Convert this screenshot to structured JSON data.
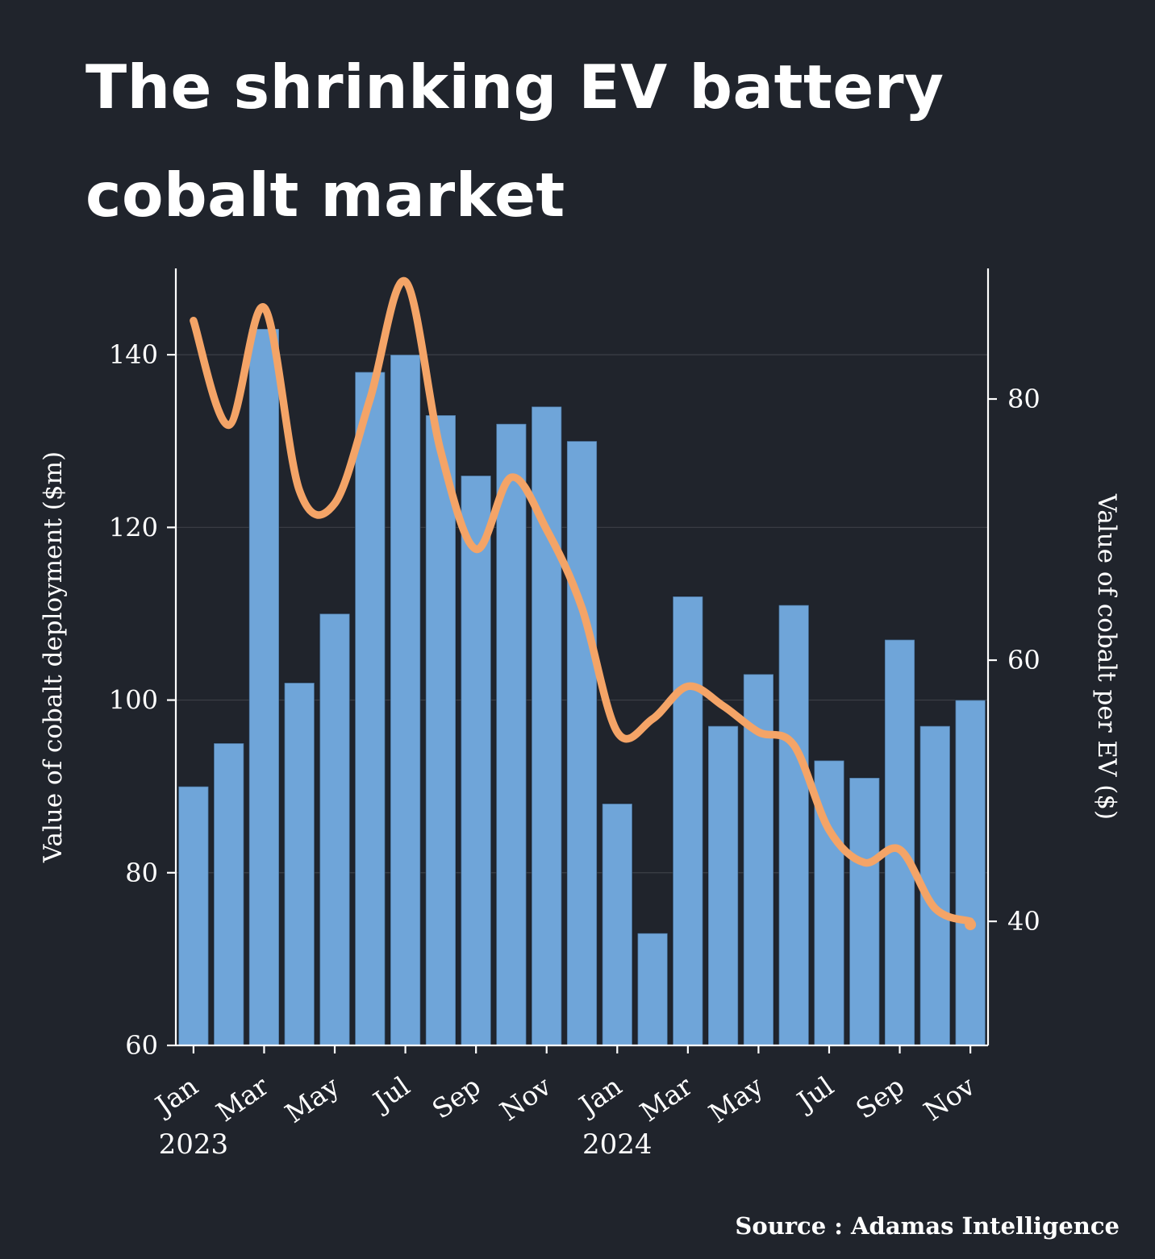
{
  "title": {
    "line1": "The shrinking EV battery",
    "line2": "cobalt market"
  },
  "source": "Source : Adamas Intelligence",
  "chart_data": {
    "type": "bar+line",
    "title": "The shrinking EV battery cobalt market",
    "categories": [
      "Jan 2023",
      "Feb 2023",
      "Mar 2023",
      "Apr 2023",
      "May 2023",
      "Jun 2023",
      "Jul 2023",
      "Aug 2023",
      "Sep 2023",
      "Oct 2023",
      "Nov 2023",
      "Dec 2023",
      "Jan 2024",
      "Feb 2024",
      "Mar 2024",
      "Apr 2024",
      "May 2024",
      "Jun 2024",
      "Jul 2024",
      "Aug 2024",
      "Sep 2024",
      "Oct 2024",
      "Nov 2024"
    ],
    "x_tick_labels": [
      "Jan",
      "",
      "Mar",
      "",
      "May",
      "",
      "Jul",
      "",
      "Sep",
      "",
      "Nov",
      "",
      "Jan",
      "",
      "Mar",
      "",
      "May",
      "",
      "Jul",
      "",
      "Sep",
      "",
      "Nov"
    ],
    "year_labels": [
      {
        "text": "2023",
        "index": 0
      },
      {
        "text": "2024",
        "index": 12
      }
    ],
    "series": [
      {
        "name": "Value of cobalt deployment ($m)",
        "type": "bar",
        "axis": "left",
        "color": "#6fa5d9",
        "values": [
          90,
          95,
          143,
          102,
          110,
          138,
          140,
          133,
          126,
          132,
          134,
          130,
          88,
          73,
          112,
          97,
          103,
          111,
          93,
          91,
          107,
          97,
          100
        ]
      },
      {
        "name": "Value of cobalt per EV ($)",
        "type": "line",
        "axis": "right",
        "color": "#f4a467",
        "values": [
          86,
          78,
          87,
          73,
          72,
          80,
          89,
          76,
          68.5,
          74,
          70,
          64,
          54.5,
          55.5,
          58,
          56.5,
          54.5,
          53.5,
          47,
          44.5,
          45.5,
          41,
          40
        ]
      }
    ],
    "left_axis": {
      "label": "Value of cobalt deployment ($m)",
      "min": 60,
      "max": 150,
      "ticks": [
        60,
        80,
        100,
        120,
        140
      ]
    },
    "right_axis": {
      "label": "Value of cobalt per EV ($)",
      "min": 30.5,
      "max": 90,
      "ticks": [
        40,
        60,
        80
      ]
    },
    "grid": "horizontal-faint",
    "legend": "none",
    "colors": {
      "background": "#20242c",
      "bar": "#6fa5d9",
      "line": "#f4a467",
      "text": "#ffffff"
    }
  }
}
